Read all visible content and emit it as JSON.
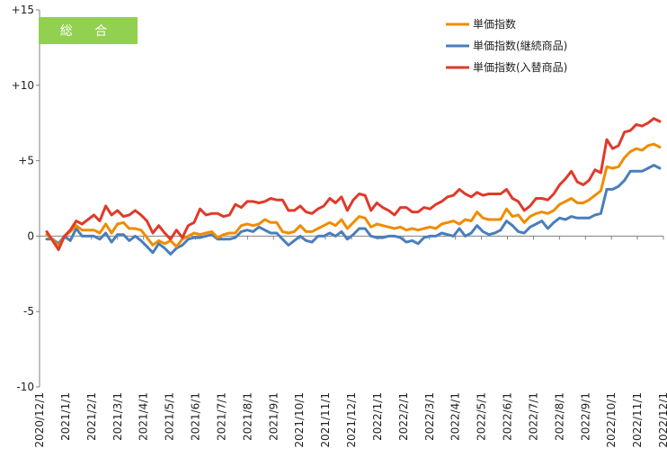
{
  "chart_data": {
    "type": "line",
    "badge": "総 合",
    "title": "",
    "xlabel": "",
    "ylabel": "",
    "ylim": [
      -10,
      15
    ],
    "yticks": [
      -10,
      -5,
      0,
      5,
      10,
      15
    ],
    "ytick_labels": [
      "-10",
      "-5",
      "0",
      "+5",
      "+10",
      "+15"
    ],
    "x_tick_labels": [
      "2020/12/1",
      "2021/1/1",
      "2021/2/1",
      "2021/3/1",
      "2021/4/1",
      "2021/5/1",
      "2021/6/1",
      "2021/7/1",
      "2021/8/1",
      "2021/9/1",
      "2021/10/1",
      "2021/11/1",
      "2021/12/1",
      "2022/1/1",
      "2022/2/1",
      "2022/3/1",
      "2022/4/1",
      "2022/5/1",
      "2022/6/1",
      "2022/7/1",
      "2022/8/1",
      "2022/9/1",
      "2022/10/1",
      "2022/11/1",
      "2022/12/1"
    ],
    "grid": false,
    "legend_position": "top-right",
    "series": [
      {
        "name": "単価指数",
        "color": "#f08c00",
        "values": [
          0.1,
          -0.2,
          -0.7,
          0.0,
          0.3,
          0.7,
          0.4,
          0.4,
          0.4,
          0.2,
          0.8,
          0.2,
          0.8,
          0.9,
          0.5,
          0.5,
          0.4,
          -0.1,
          -0.6,
          -0.3,
          -0.5,
          -0.3,
          -0.7,
          -0.2,
          0.0,
          0.2,
          0.1,
          0.2,
          0.3,
          -0.1,
          0.1,
          0.2,
          0.2,
          0.7,
          0.8,
          0.7,
          0.8,
          1.1,
          0.9,
          0.9,
          0.3,
          0.2,
          0.3,
          0.7,
          0.3,
          0.3,
          0.5,
          0.7,
          0.9,
          0.7,
          1.1,
          0.5,
          0.9,
          1.3,
          1.2,
          0.6,
          0.8,
          0.7,
          0.6,
          0.5,
          0.6,
          0.4,
          0.5,
          0.4,
          0.5,
          0.6,
          0.5,
          0.8,
          0.9,
          1.0,
          0.8,
          1.1,
          1.0,
          1.6,
          1.2,
          1.1,
          1.1,
          1.1,
          1.8,
          1.3,
          1.4,
          0.9,
          1.3,
          1.5,
          1.6,
          1.5,
          1.7,
          2.1,
          2.3,
          2.5,
          2.2,
          2.2,
          2.4,
          2.7,
          3.0,
          4.6,
          4.5,
          4.6,
          5.2,
          5.6,
          5.8,
          5.7,
          6.0,
          6.1,
          5.9
        ]
      },
      {
        "name": "単価指数(継続商品)",
        "color": "#4a7ebb",
        "values": [
          -0.2,
          -0.2,
          -0.5,
          0.0,
          -0.3,
          0.5,
          0.0,
          0.0,
          0.0,
          -0.2,
          0.2,
          -0.4,
          0.1,
          0.1,
          -0.3,
          0.0,
          -0.3,
          -0.7,
          -1.1,
          -0.5,
          -0.8,
          -1.2,
          -0.8,
          -0.6,
          -0.2,
          -0.1,
          -0.1,
          0.0,
          0.1,
          -0.2,
          -0.2,
          -0.2,
          -0.1,
          0.3,
          0.4,
          0.3,
          0.6,
          0.4,
          0.2,
          0.2,
          -0.2,
          -0.6,
          -0.3,
          0.0,
          -0.3,
          -0.4,
          0.0,
          0.0,
          0.2,
          0.0,
          0.3,
          -0.2,
          0.1,
          0.5,
          0.5,
          0.0,
          -0.1,
          -0.1,
          0.0,
          0.0,
          -0.1,
          -0.4,
          -0.3,
          -0.5,
          -0.1,
          0.0,
          0.0,
          0.2,
          0.1,
          0.0,
          0.5,
          0.0,
          0.2,
          0.7,
          0.3,
          0.1,
          0.2,
          0.4,
          1.0,
          0.7,
          0.3,
          0.2,
          0.6,
          0.8,
          1.0,
          0.5,
          0.9,
          1.2,
          1.1,
          1.3,
          1.2,
          1.2,
          1.2,
          1.4,
          1.5,
          3.1,
          3.1,
          3.3,
          3.7,
          4.3,
          4.3,
          4.3,
          4.5,
          4.7,
          4.5
        ]
      },
      {
        "name": "単価指数(入替商品)",
        "color": "#e03a2a",
        "values": [
          0.3,
          -0.3,
          -0.9,
          0.0,
          0.4,
          1.0,
          0.8,
          1.1,
          1.4,
          1.0,
          2.0,
          1.4,
          1.7,
          1.3,
          1.4,
          1.7,
          1.4,
          1.0,
          0.2,
          0.7,
          0.2,
          -0.2,
          0.4,
          -0.1,
          0.7,
          0.9,
          1.8,
          1.4,
          1.5,
          1.5,
          1.3,
          1.4,
          2.1,
          1.9,
          2.3,
          2.3,
          2.2,
          2.3,
          2.5,
          2.4,
          2.4,
          1.7,
          1.7,
          2.0,
          1.6,
          1.5,
          1.8,
          2.0,
          2.5,
          2.2,
          2.6,
          1.7,
          2.4,
          2.8,
          2.7,
          1.7,
          2.2,
          1.9,
          1.7,
          1.4,
          1.9,
          1.9,
          1.6,
          1.6,
          1.9,
          1.8,
          2.1,
          2.3,
          2.6,
          2.7,
          3.1,
          2.8,
          2.6,
          2.9,
          2.7,
          2.8,
          2.8,
          2.8,
          3.1,
          2.5,
          2.3,
          1.7,
          2.0,
          2.5,
          2.5,
          2.4,
          2.8,
          3.4,
          3.8,
          4.3,
          3.6,
          3.4,
          3.7,
          4.4,
          4.2,
          6.4,
          5.8,
          6.0,
          6.9,
          7.0,
          7.4,
          7.3,
          7.5,
          7.8,
          7.6
        ]
      }
    ]
  }
}
